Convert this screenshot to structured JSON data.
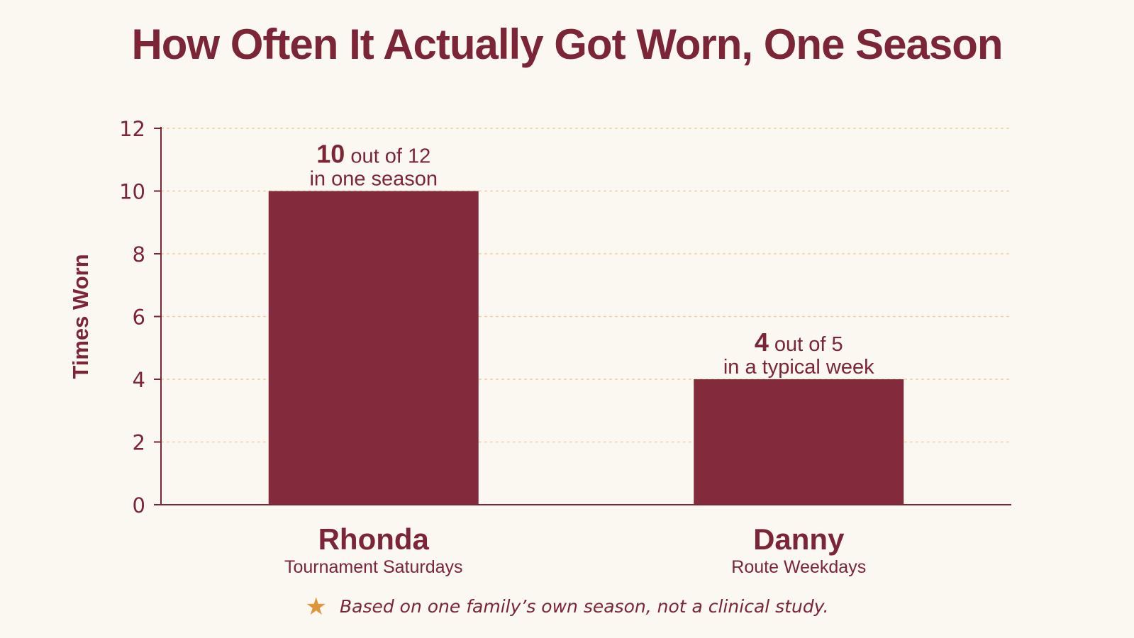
{
  "chart_data": {
    "type": "bar",
    "title": "How Often It Actually Got Worn, One Season",
    "ylabel": "Times Worn",
    "xlabel": "",
    "ylim": [
      0,
      12
    ],
    "yticks": [
      0,
      2,
      4,
      6,
      8,
      10,
      12
    ],
    "grid": true,
    "categories": [
      {
        "name": "Rhonda",
        "subtitle": "Tournament Saturdays"
      },
      {
        "name": "Danny",
        "subtitle": "Route Weekdays"
      }
    ],
    "values": [
      10,
      4
    ],
    "bar_labels": [
      {
        "count": "10",
        "rest": " out of 12",
        "line2": "in one season"
      },
      {
        "count": "4",
        "rest": " out of 5",
        "line2": "in a typical week"
      }
    ],
    "colors": {
      "bar": "#832a3d",
      "axis": "#7c2537",
      "grid": "#f0cfa0",
      "star": "#e0953a",
      "background": "#fbf8f2"
    }
  },
  "footnote": {
    "icon": "star-icon",
    "text": "Based on one family’s own season, not a clinical study."
  }
}
